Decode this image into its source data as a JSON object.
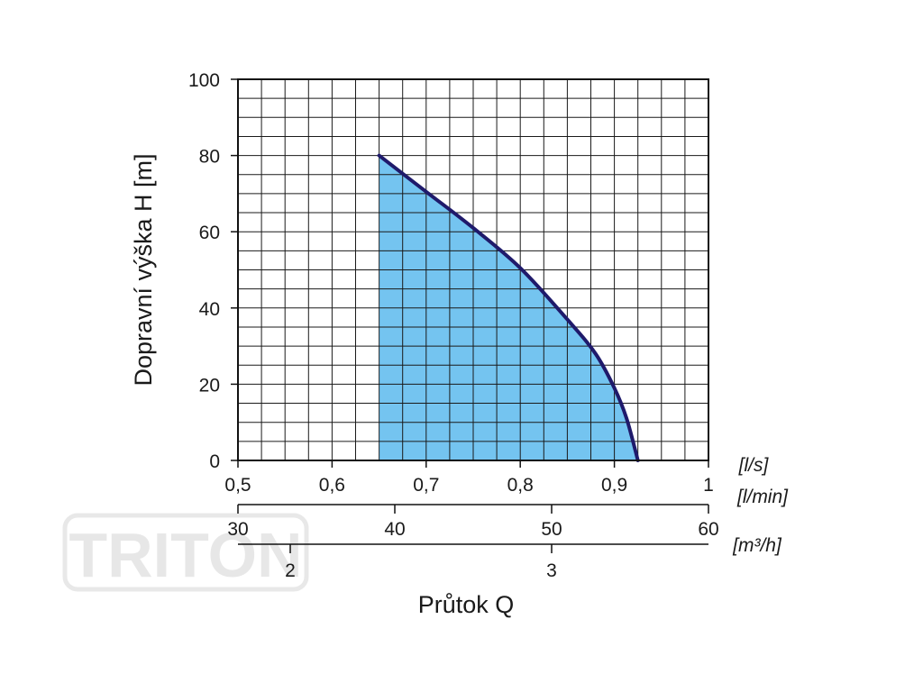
{
  "watermark": {
    "text": "TRITON",
    "opacity": 0.09
  },
  "chart_data": {
    "type": "area",
    "ylabel": "Dopravní výška H [m]",
    "xlabel": "Průtok Q",
    "y_axis": {
      "ylim": [
        0,
        100
      ],
      "ticks": [
        0,
        20,
        40,
        60,
        80,
        100
      ],
      "tick_labels": [
        "0",
        "20",
        "40",
        "60",
        "80",
        "100"
      ]
    },
    "x_axis": {
      "xlim": [
        0.5,
        1.0
      ],
      "ticks": [
        0.5,
        0.6,
        0.7,
        0.8,
        0.9,
        1.0
      ],
      "tick_labels": [
        "0,5",
        "0,6",
        "0,7",
        "0,8",
        "0,9",
        "1"
      ],
      "unit": "[l/s]"
    },
    "x_axis_secondary": {
      "xlim": [
        30,
        60
      ],
      "ticks": [
        30,
        40,
        50,
        60
      ],
      "tick_labels": [
        "30",
        "40",
        "50",
        "60"
      ],
      "unit": "[l/min]"
    },
    "x_axis_tertiary": {
      "xlim": [
        1.8,
        3.6
      ],
      "ticks": [
        2,
        3
      ],
      "tick_labels": [
        "2",
        "3"
      ],
      "unit": "[m³/h]"
    },
    "grid": true,
    "series": [
      {
        "x": [
          0.65,
          0.7,
          0.75,
          0.8,
          0.85,
          0.88,
          0.9,
          0.913,
          0.925
        ],
        "y": [
          80,
          70.5,
          61,
          50.5,
          37,
          28,
          19,
          11,
          0
        ]
      }
    ],
    "colors": {
      "fill": "#74c4f0",
      "curve": "#1f1a6b",
      "grid": "#1a1a1a"
    }
  }
}
